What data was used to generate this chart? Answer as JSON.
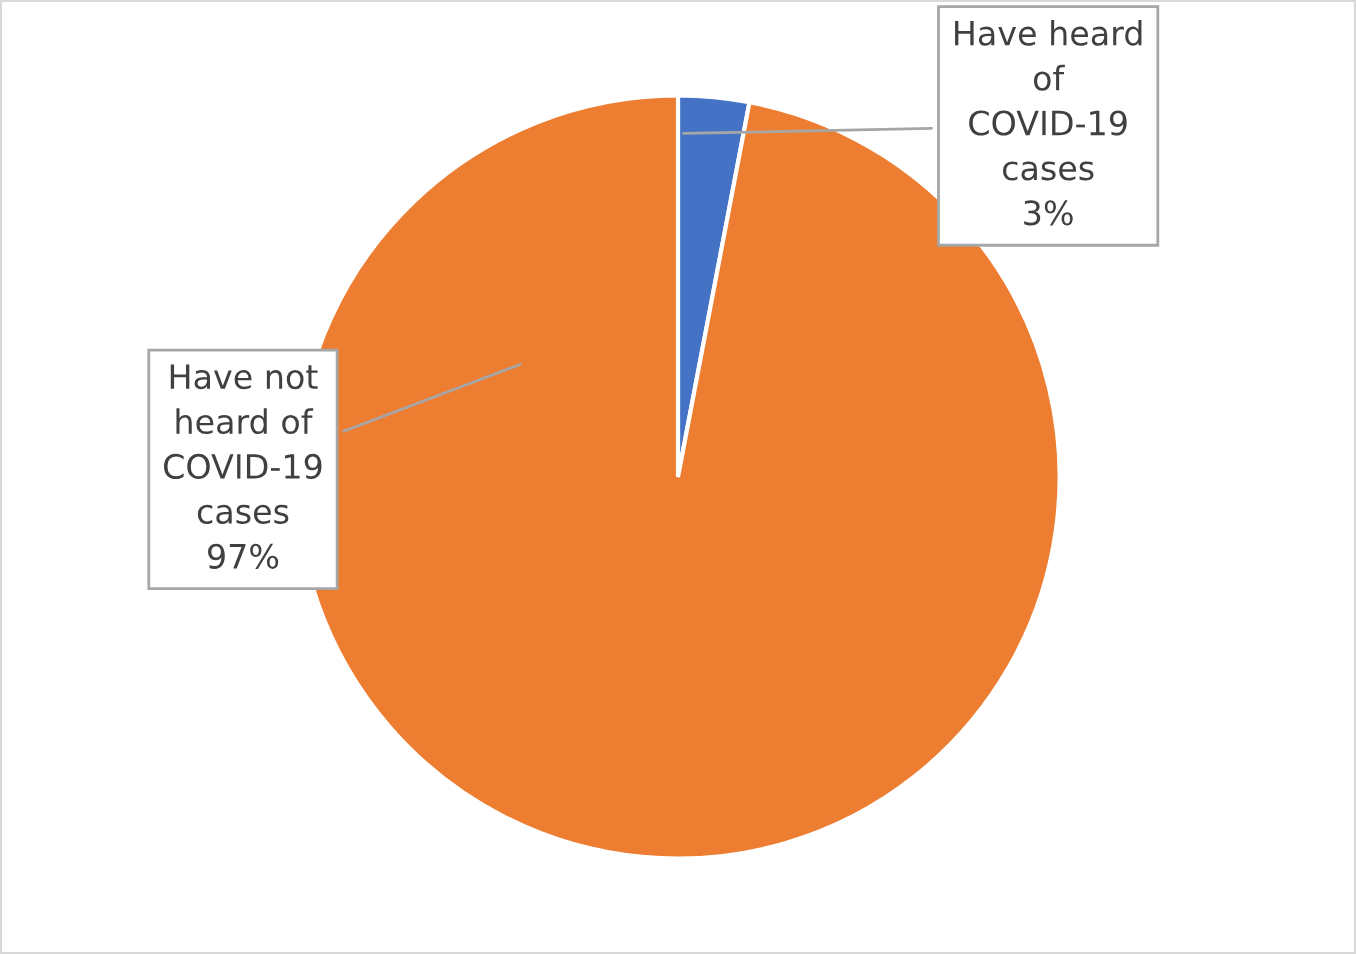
{
  "chart_data": {
    "type": "pie",
    "categories": [
      "Have heard of COVID-19 cases",
      "Have not heard of COVID-19 cases"
    ],
    "values": [
      3,
      97
    ],
    "colors": [
      "#4472c4",
      "#ed7d31"
    ],
    "value_labels": [
      "3%",
      "97%"
    ]
  }
}
